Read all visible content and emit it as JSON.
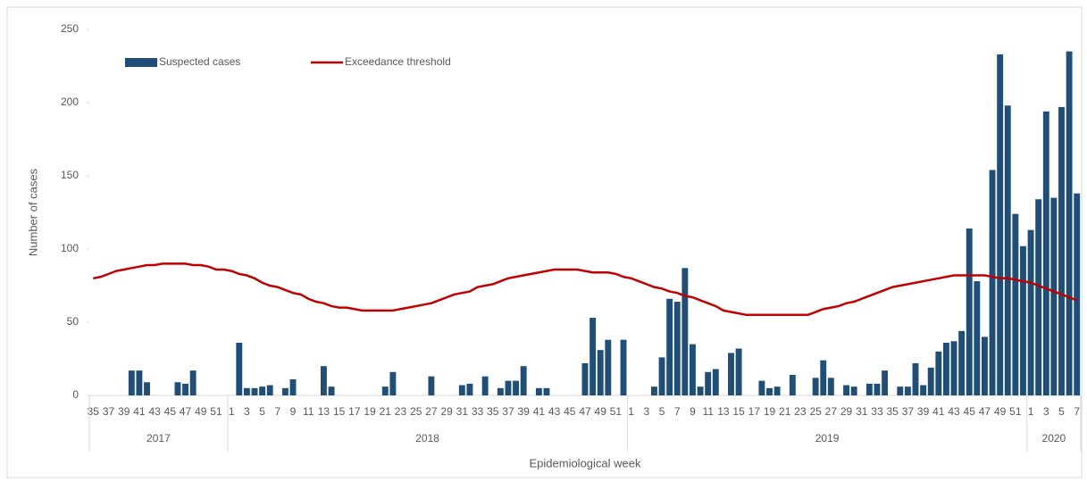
{
  "chart_data": {
    "type": "bar-line",
    "y_axis_label": "Number of cases",
    "x_axis_label": "Epidemiological week",
    "ylim": [
      0,
      250
    ],
    "yticks": [
      0,
      50,
      100,
      150,
      200,
      250
    ],
    "grid": false,
    "legend": "top-left",
    "groups": [
      {
        "label": "2017",
        "categories": [
          "35",
          null,
          "37",
          null,
          "39",
          null,
          "41",
          null,
          "43",
          null,
          "45",
          null,
          "47",
          null,
          "49",
          null,
          "51",
          null
        ]
      },
      {
        "label": "2018",
        "categories": [
          "1",
          null,
          "3",
          null,
          "5",
          null,
          "7",
          null,
          "9",
          null,
          "11",
          null,
          "13",
          null,
          "15",
          null,
          "17",
          null,
          "19",
          null,
          "21",
          null,
          "23",
          null,
          "25",
          null,
          "27",
          null,
          "29",
          null,
          "31",
          null,
          "33",
          null,
          "35",
          null,
          "37",
          null,
          "39",
          null,
          "41",
          null,
          "43",
          null,
          "45",
          null,
          "47",
          null,
          "49",
          null,
          "51",
          null
        ]
      },
      {
        "label": "2019",
        "categories": [
          "1",
          null,
          "3",
          null,
          "5",
          null,
          "7",
          null,
          "9",
          null,
          "11",
          null,
          "13",
          null,
          "15",
          null,
          "17",
          null,
          "19",
          null,
          "21",
          null,
          "23",
          null,
          "25",
          null,
          "27",
          null,
          "29",
          null,
          "31",
          null,
          "33",
          null,
          "35",
          null,
          "37",
          null,
          "39",
          null,
          "41",
          null,
          "43",
          null,
          "45",
          null,
          "47",
          null,
          "49",
          null,
          "51",
          null
        ]
      },
      {
        "label": "2020",
        "categories": [
          "1",
          null,
          "3",
          null,
          "5",
          null,
          "7"
        ]
      }
    ],
    "series": [
      {
        "name": "Suspected cases",
        "type": "bar",
        "color": "#1f4e79",
        "values": [
          0,
          0,
          0,
          0,
          0,
          17,
          17,
          9,
          0,
          0,
          0,
          9,
          8,
          17,
          0,
          0,
          0,
          0,
          0,
          36,
          5,
          5,
          6,
          7,
          0,
          5,
          11,
          0,
          0,
          0,
          20,
          6,
          0,
          0,
          0,
          0,
          0,
          0,
          6,
          16,
          0,
          0,
          0,
          0,
          13,
          0,
          0,
          0,
          7,
          8,
          0,
          13,
          0,
          5,
          10,
          10,
          20,
          0,
          5,
          5,
          0,
          0,
          0,
          0,
          22,
          53,
          31,
          38,
          0,
          38,
          0,
          0,
          0,
          6,
          26,
          66,
          64,
          87,
          35,
          6,
          16,
          18,
          0,
          29,
          32,
          0,
          0,
          10,
          5,
          6,
          0,
          14,
          0,
          0,
          12,
          24,
          12,
          0,
          7,
          6,
          0,
          8,
          8,
          17,
          0,
          6,
          6,
          22,
          7,
          19,
          30,
          36,
          37,
          44,
          114,
          78,
          40,
          154,
          233,
          198,
          124,
          102,
          113,
          134,
          194,
          135,
          197,
          235,
          138
        ]
      },
      {
        "name": "Exceedance threshold",
        "type": "line",
        "color": "#c00000",
        "values": [
          80,
          81,
          83,
          85,
          86,
          87,
          88,
          89,
          89,
          90,
          90,
          90,
          90,
          89,
          89,
          88,
          86,
          86,
          85,
          83,
          82,
          80,
          77,
          75,
          74,
          72,
          70,
          69,
          66,
          64,
          63,
          61,
          60,
          60,
          59,
          58,
          58,
          58,
          58,
          58,
          59,
          60,
          61,
          62,
          63,
          65,
          67,
          69,
          70,
          71,
          74,
          75,
          76,
          78,
          80,
          81,
          82,
          83,
          84,
          85,
          86,
          86,
          86,
          86,
          85,
          84,
          84,
          84,
          83,
          81,
          80,
          78,
          76,
          74,
          73,
          71,
          70,
          68,
          67,
          65,
          63,
          61,
          58,
          57,
          56,
          55,
          55,
          55,
          55,
          55,
          55,
          55,
          55,
          55,
          57,
          59,
          60,
          61,
          63,
          64,
          66,
          68,
          70,
          72,
          74,
          75,
          76,
          77,
          78,
          79,
          80,
          81,
          82,
          82,
          82,
          82,
          82,
          81,
          80,
          80,
          79,
          78,
          77,
          75,
          73,
          71,
          69,
          67,
          65
        ]
      }
    ]
  }
}
